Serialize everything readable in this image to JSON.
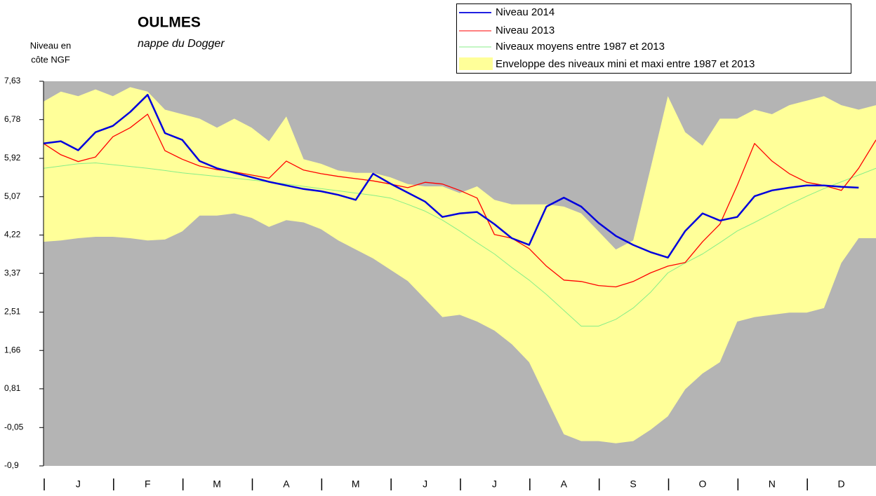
{
  "chart_data": {
    "type": "line",
    "title": "OULMES",
    "subtitle": "nappe du Dogger",
    "y_label": [
      "Niveau en",
      "côte NGF"
    ],
    "background": "#b4b4b4",
    "xlim": [
      0,
      12
    ],
    "xticks": [
      {
        "value": 0.5,
        "label": "J"
      },
      {
        "value": 1.5,
        "label": "F"
      },
      {
        "value": 2.5,
        "label": "M"
      },
      {
        "value": 3.5,
        "label": "A"
      },
      {
        "value": 4.5,
        "label": "M"
      },
      {
        "value": 5.5,
        "label": "J"
      },
      {
        "value": 6.5,
        "label": "J"
      },
      {
        "value": 7.5,
        "label": "A"
      },
      {
        "value": 8.5,
        "label": "S"
      },
      {
        "value": 9.5,
        "label": "O"
      },
      {
        "value": 10.5,
        "label": "N"
      },
      {
        "value": 11.5,
        "label": "D"
      }
    ],
    "minor_xticks": [
      0,
      1,
      2,
      3,
      4,
      5,
      6,
      7,
      8,
      9,
      10,
      11
    ],
    "ylim": [
      -0.9,
      7.63
    ],
    "yticks": [
      {
        "value": 7.63,
        "label": "7,63"
      },
      {
        "value": 6.78,
        "label": "6,78"
      },
      {
        "value": 5.92,
        "label": "5,92"
      },
      {
        "value": 5.07,
        "label": "5,07"
      },
      {
        "value": 4.22,
        "label": "4,22"
      },
      {
        "value": 3.37,
        "label": "3,37"
      },
      {
        "value": 2.51,
        "label": "2,51"
      },
      {
        "value": 1.66,
        "label": "1,66"
      },
      {
        "value": 0.81,
        "label": "0,81"
      },
      {
        "value": -0.05,
        "label": "-0,05"
      },
      {
        "value": -0.9,
        "label": "-0,9"
      }
    ],
    "x": [
      0,
      0.25,
      0.5,
      0.75,
      1,
      1.25,
      1.5,
      1.75,
      2,
      2.25,
      2.5,
      2.75,
      3,
      3.25,
      3.5,
      3.75,
      4,
      4.25,
      4.5,
      4.75,
      5,
      5.25,
      5.5,
      5.75,
      6,
      6.25,
      6.5,
      6.75,
      7,
      7.25,
      7.5,
      7.75,
      8,
      8.25,
      8.5,
      8.75,
      9,
      9.25,
      9.5,
      9.75,
      10,
      10.25,
      10.5,
      10.75,
      11,
      11.25,
      11.5,
      11.75,
      12
    ],
    "band": {
      "name": "Enveloppe des niveaux mini et maxi entre 1987 et 2013",
      "color": "#ffff99",
      "upper": [
        7.18,
        7.4,
        7.3,
        7.45,
        7.3,
        7.5,
        7.4,
        7.0,
        6.9,
        6.8,
        6.6,
        6.8,
        6.6,
        6.3,
        6.85,
        5.9,
        5.8,
        5.65,
        5.6,
        5.6,
        5.5,
        5.35,
        5.3,
        5.3,
        5.15,
        5.3,
        5.0,
        4.9,
        4.9,
        4.9,
        4.85,
        4.7,
        4.3,
        3.9,
        4.1,
        5.7,
        7.3,
        6.5,
        6.2,
        6.8,
        6.8,
        7.0,
        6.9,
        7.1,
        7.2,
        7.3,
        7.1,
        7.0,
        7.1
      ],
      "lower": [
        4.07,
        4.1,
        4.15,
        4.18,
        4.18,
        4.15,
        4.1,
        4.12,
        4.3,
        4.65,
        4.65,
        4.7,
        4.6,
        4.4,
        4.55,
        4.5,
        4.35,
        4.1,
        3.9,
        3.7,
        3.45,
        3.2,
        2.8,
        2.4,
        2.45,
        2.3,
        2.1,
        1.8,
        1.4,
        0.6,
        -0.2,
        -0.35,
        -0.35,
        -0.4,
        -0.35,
        -0.1,
        0.2,
        0.8,
        1.15,
        1.4,
        2.3,
        2.4,
        2.45,
        2.5,
        2.5,
        2.6,
        3.6,
        4.15,
        4.15
      ]
    },
    "series": [
      {
        "name": "Niveau 2014",
        "color": "#0000dd",
        "width": 2.5,
        "values": [
          6.25,
          6.3,
          6.1,
          6.5,
          6.64,
          6.95,
          7.33,
          6.48,
          6.33,
          5.86,
          5.7,
          5.6,
          5.5,
          5.4,
          5.32,
          5.24,
          5.19,
          5.11,
          5.0,
          5.58,
          5.36,
          5.16,
          4.96,
          4.62,
          4.7,
          4.73,
          4.46,
          4.15,
          4.0,
          4.85,
          5.05,
          4.85,
          4.49,
          4.2,
          4.0,
          3.84,
          3.72,
          4.31,
          4.7,
          4.54,
          4.62,
          5.08,
          5.21,
          5.27,
          5.32,
          5.32,
          5.29,
          5.27,
          null
        ]
      },
      {
        "name": "Niveau 2013",
        "color": "#ff0000",
        "width": 1.3,
        "values": [
          6.25,
          6.0,
          5.85,
          5.95,
          6.4,
          6.6,
          6.9,
          6.09,
          5.9,
          5.75,
          5.67,
          5.62,
          5.55,
          5.48,
          5.86,
          5.66,
          5.58,
          5.52,
          5.47,
          5.42,
          5.35,
          5.27,
          5.39,
          5.35,
          5.21,
          5.04,
          4.23,
          4.15,
          3.92,
          3.53,
          3.22,
          3.19,
          3.1,
          3.07,
          3.19,
          3.38,
          3.53,
          3.61,
          4.07,
          4.46,
          5.32,
          6.25,
          5.86,
          5.58,
          5.39,
          5.32,
          5.21,
          5.7,
          6.33
        ]
      },
      {
        "name": "Niveaux moyens entre 1987 et 2013",
        "color": "#88ee88",
        "width": 1,
        "values": [
          5.7,
          5.75,
          5.8,
          5.82,
          5.78,
          5.74,
          5.7,
          5.65,
          5.6,
          5.56,
          5.52,
          5.48,
          5.44,
          5.4,
          5.35,
          5.3,
          5.25,
          5.2,
          5.15,
          5.1,
          5.04,
          4.9,
          4.75,
          4.55,
          4.31,
          4.05,
          3.8,
          3.5,
          3.22,
          2.9,
          2.55,
          2.2,
          2.2,
          2.35,
          2.6,
          2.95,
          3.38,
          3.6,
          3.8,
          4.05,
          4.31,
          4.5,
          4.7,
          4.9,
          5.08,
          5.25,
          5.4,
          5.55,
          5.7
        ]
      }
    ]
  }
}
